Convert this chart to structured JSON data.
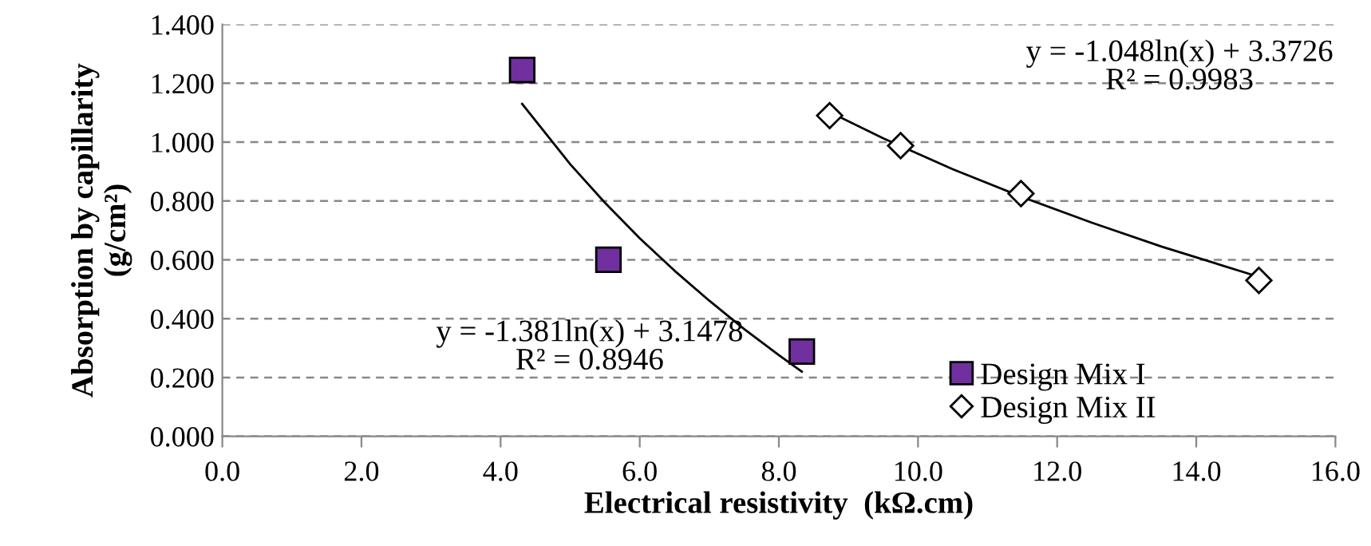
{
  "chart_data": {
    "type": "scatter",
    "xlabel": "Electrical resistivity  (kΩ.cm)",
    "ylabel": "Absorption by capillarity\n(g/cm²)",
    "xlim": [
      0,
      16
    ],
    "xticks": [
      {
        "value": 0,
        "label": "0.0"
      },
      {
        "value": 2,
        "label": "2.0"
      },
      {
        "value": 4,
        "label": "4.0"
      },
      {
        "value": 6,
        "label": "6.0"
      },
      {
        "value": 8,
        "label": "8.0"
      },
      {
        "value": 10,
        "label": "10.0"
      },
      {
        "value": 12,
        "label": "12.0"
      },
      {
        "value": 14,
        "label": "14.0"
      },
      {
        "value": 16,
        "label": "16.0"
      }
    ],
    "ylim": [
      0,
      1.4
    ],
    "yticks": [
      {
        "value": 0,
        "label": "0.000"
      },
      {
        "value": 0.2,
        "label": "0.200"
      },
      {
        "value": 0.4,
        "label": "0.400"
      },
      {
        "value": 0.6,
        "label": "0.600"
      },
      {
        "value": 0.8,
        "label": "0.800"
      },
      {
        "value": 1.0,
        "label": "1.000"
      },
      {
        "value": 1.2,
        "label": "1.200"
      },
      {
        "value": 1.4,
        "label": "1.400"
      }
    ],
    "grid": "y",
    "legend": "bottom right",
    "series": [
      {
        "name": "Design Mix I",
        "marker": "square",
        "color": "#7030a0",
        "x": [
          4.31,
          5.55,
          8.33
        ],
        "values": [
          1.245,
          0.6,
          0.288
        ]
      },
      {
        "name": "Design Mix II",
        "marker": "diamond",
        "color": "#ffffff",
        "x": [
          8.73,
          9.75,
          11.48,
          14.9
        ],
        "values": [
          1.09,
          0.988,
          0.825,
          0.53
        ]
      },
      {
        "type": "line",
        "color": "#000000",
        "x": [
          4.31,
          5,
          5.5,
          6,
          6.5,
          7,
          7.5,
          8,
          8.33
        ],
        "values": [
          1.13,
          0.925,
          0.794,
          0.673,
          0.563,
          0.461,
          0.365,
          0.276,
          0.22
        ]
      },
      {
        "type": "line",
        "color": "#000000",
        "x": [
          8.73,
          9.5,
          10.5,
          11.5,
          12.5,
          13.5,
          14.9
        ],
        "values": [
          1.102,
          1.013,
          0.908,
          0.813,
          0.726,
          0.645,
          0.542
        ]
      }
    ],
    "annotations": [
      "y = -1.381ln(x) + 3.1478\nR² = 0.8946",
      "y = -1.048ln(x) + 3.3726\nR² = 0.9983"
    ]
  }
}
